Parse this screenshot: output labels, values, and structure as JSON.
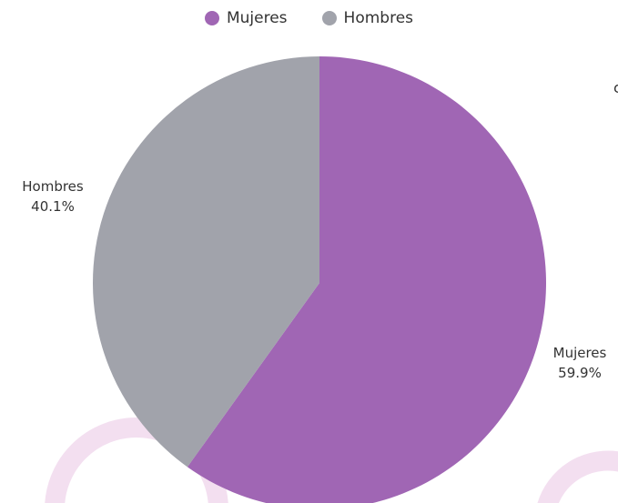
{
  "chart_data": {
    "type": "pie",
    "categories": [
      "Mujeres",
      "Hombres"
    ],
    "values": [
      59.9,
      40.1
    ],
    "value_labels": [
      "59.9%",
      "40.1%"
    ],
    "colors": [
      "#a066b4",
      "#a1a3ab"
    ],
    "legend": {
      "placement": "top-center",
      "entries": [
        "Mujeres",
        "Hombres"
      ]
    },
    "start_angle": "12 o'clock",
    "direction": "clockwise"
  },
  "edge_text": "c"
}
